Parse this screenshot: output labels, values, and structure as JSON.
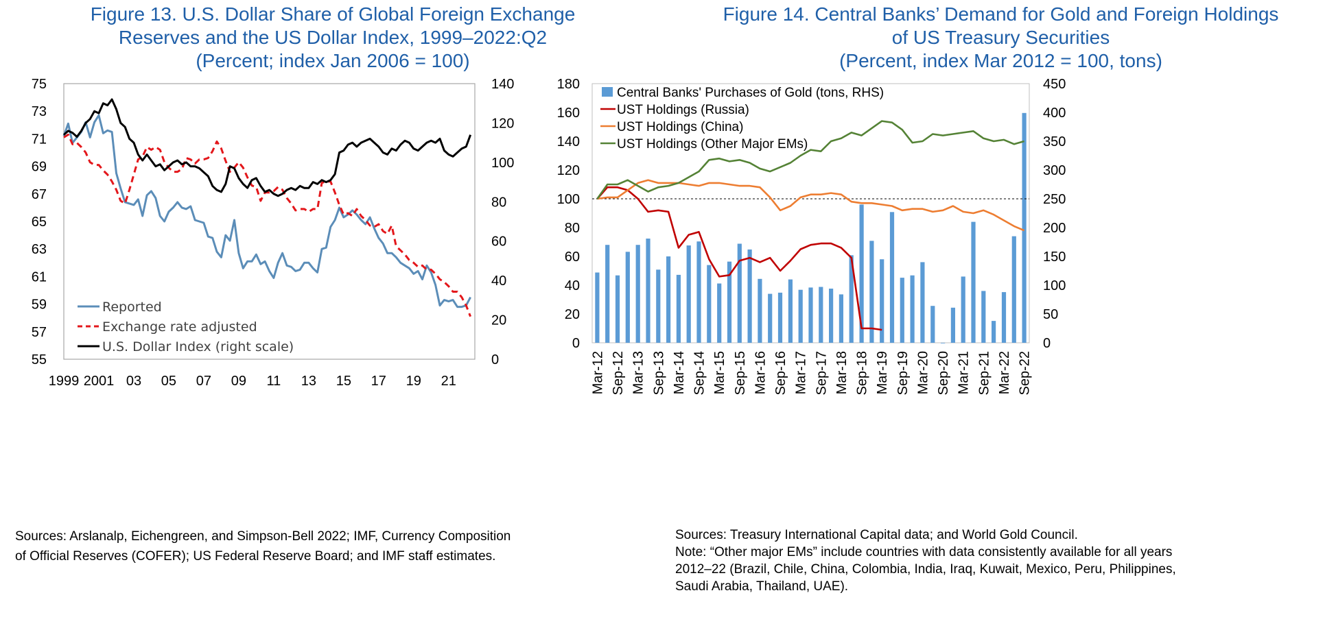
{
  "left": {
    "title_lines": [
      "Figure 13. U.S. Dollar Share of Global Foreign Exchange",
      "Reserves and the US Dollar Index, 1999–2022:Q2",
      "(Percent; index Jan 2006 = 100)"
    ],
    "source_lines": [
      "Sources: Arslanalp, Eichengreen, and Simpson-Bell 2022; IMF, Currency Composition",
      "of Official Reserves (COFER); US Federal Reserve Board; and IMF staff estimates."
    ]
  },
  "right": {
    "title_lines": [
      "Figure 14. Central Banks’ Demand for Gold and Foreign Holdings",
      "of US Treasury Securities",
      "(Percent, index Mar 2012 = 100, tons)"
    ],
    "source_lines": [
      "Sources: Treasury International Capital data; and World Gold Council.",
      "Note: “Other major EMs” include countries with data consistently available for all years",
      "2012–22 (Brazil, Chile, China, Colombia, India, Iraq, Kuwait, Mexico, Peru, Philippines,",
      "Saudi Arabia, Thailand, UAE)."
    ]
  },
  "chart_data": [
    {
      "type": "line",
      "x_tick_labels": [
        "1999",
        "2001",
        "03",
        "05",
        "07",
        "09",
        "11",
        "13",
        "15",
        "17",
        "19",
        "21"
      ],
      "x_ticks": [
        1999.0,
        2001.0,
        2003.0,
        2005.0,
        2007.0,
        2009.0,
        2011.0,
        2013.0,
        2015.0,
        2017.0,
        2019.0,
        2021.0
      ],
      "x_range": [
        1999.0,
        2022.5
      ],
      "ylim_left": [
        55,
        75
      ],
      "yticks_left": [
        55,
        57,
        59,
        61,
        63,
        65,
        67,
        69,
        71,
        73,
        75
      ],
      "ylim_right": [
        0,
        140
      ],
      "yticks_right": [
        0,
        20,
        40,
        60,
        80,
        100,
        120,
        140
      ],
      "legend_position": "bottom-left",
      "grid": false,
      "colors": {
        "reported": "#5b8db8",
        "adjusted": "#e3171b",
        "dxy": "#000000"
      },
      "series": [
        {
          "name": "Reported",
          "axis": "left",
          "style": "solid",
          "x": [
            1999.0,
            1999.25,
            1999.5,
            1999.75,
            2000.0,
            2000.25,
            2000.5,
            2000.75,
            2001.0,
            2001.25,
            2001.5,
            2001.75,
            2002.0,
            2002.25,
            2002.5,
            2002.75,
            2003.0,
            2003.25,
            2003.5,
            2003.75,
            2004.0,
            2004.25,
            2004.5,
            2004.75,
            2005.0,
            2005.25,
            2005.5,
            2005.75,
            2006.0,
            2006.25,
            2006.5,
            2006.75,
            2007.0,
            2007.25,
            2007.5,
            2007.75,
            2008.0,
            2008.25,
            2008.5,
            2008.75,
            2009.0,
            2009.25,
            2009.5,
            2009.75,
            2010.0,
            2010.25,
            2010.5,
            2010.75,
            2011.0,
            2011.25,
            2011.5,
            2011.75,
            2012.0,
            2012.25,
            2012.5,
            2012.75,
            2013.0,
            2013.25,
            2013.5,
            2013.75,
            2014.0,
            2014.25,
            2014.5,
            2014.75,
            2015.0,
            2015.25,
            2015.5,
            2015.75,
            2016.0,
            2016.25,
            2016.5,
            2016.75,
            2017.0,
            2017.25,
            2017.5,
            2017.75,
            2018.0,
            2018.25,
            2018.5,
            2018.75,
            2019.0,
            2019.25,
            2019.5,
            2019.75,
            2020.0,
            2020.25,
            2020.5,
            2020.75,
            2021.0,
            2021.25,
            2021.5,
            2021.75,
            2022.0,
            2022.25
          ],
          "values": [
            71.2,
            72.1,
            70.7,
            71.1,
            71.5,
            72.2,
            71.1,
            72.2,
            72.7,
            71.4,
            71.6,
            71.5,
            68.5,
            67.4,
            66.4,
            66.3,
            66.2,
            66.6,
            65.4,
            66.9,
            67.2,
            66.7,
            65.4,
            65.0,
            65.7,
            66.0,
            66.4,
            66.0,
            65.9,
            66.1,
            65.1,
            65.0,
            64.9,
            63.9,
            63.8,
            62.8,
            62.4,
            64.0,
            63.6,
            65.1,
            62.7,
            61.6,
            62.1,
            62.1,
            62.6,
            61.9,
            62.1,
            61.4,
            60.9,
            62.0,
            62.7,
            61.8,
            61.7,
            61.4,
            61.5,
            62.0,
            62.0,
            61.6,
            61.3,
            63.0,
            63.1,
            64.6,
            65.1,
            66.0,
            65.3,
            65.5,
            65.8,
            65.5,
            65.1,
            64.8,
            65.3,
            64.5,
            63.8,
            63.4,
            62.7,
            62.7,
            62.4,
            62.0,
            61.8,
            61.6,
            61.2,
            61.4,
            60.8,
            61.8,
            61.3,
            60.4,
            58.9,
            59.3,
            59.2,
            59.3,
            58.8,
            58.8,
            58.9,
            59.5
          ]
        },
        {
          "name": "Exchange rate adjusted",
          "axis": "left",
          "style": "dashed",
          "x": [
            1999.0,
            1999.25,
            1999.5,
            1999.75,
            2000.0,
            2000.25,
            2000.5,
            2000.75,
            2001.0,
            2001.25,
            2001.5,
            2001.75,
            2002.0,
            2002.25,
            2002.5,
            2002.75,
            2003.0,
            2003.25,
            2003.5,
            2003.75,
            2004.0,
            2004.25,
            2004.5,
            2004.75,
            2005.0,
            2005.25,
            2005.5,
            2005.75,
            2006.0,
            2006.25,
            2006.5,
            2006.75,
            2007.0,
            2007.25,
            2007.5,
            2007.75,
            2008.0,
            2008.25,
            2008.5,
            2008.75,
            2009.0,
            2009.25,
            2009.5,
            2009.75,
            2010.0,
            2010.25,
            2010.5,
            2010.75,
            2011.0,
            2011.25,
            2011.5,
            2011.75,
            2012.0,
            2012.25,
            2012.5,
            2012.75,
            2013.0,
            2013.25,
            2013.5,
            2013.75,
            2014.0,
            2014.25,
            2014.5,
            2014.75,
            2015.0,
            2015.25,
            2015.5,
            2015.75,
            2016.0,
            2016.25,
            2016.5,
            2016.75,
            2017.0,
            2017.25,
            2017.5,
            2017.75,
            2018.0,
            2018.25,
            2018.5,
            2018.75,
            2019.0,
            2019.25,
            2019.5,
            2019.75,
            2020.0,
            2020.25,
            2020.5,
            2020.75,
            2021.0,
            2021.25,
            2021.5,
            2021.75,
            2022.0,
            2022.25
          ],
          "values": [
            71.1,
            71.3,
            70.6,
            70.7,
            70.4,
            70.0,
            69.3,
            69.1,
            69.1,
            68.7,
            68.4,
            67.9,
            67.3,
            66.5,
            66.3,
            67.3,
            68.4,
            69.5,
            69.7,
            70.4,
            70.2,
            70.4,
            70.2,
            69.3,
            68.9,
            68.6,
            68.6,
            68.8,
            69.6,
            69.5,
            69.2,
            69.5,
            69.5,
            69.6,
            70.1,
            70.8,
            70.3,
            69.4,
            68.6,
            68.9,
            69.3,
            68.9,
            68.2,
            67.6,
            67.5,
            66.5,
            67.1,
            67.1,
            67.2,
            67.5,
            67.3,
            66.7,
            66.3,
            65.8,
            65.9,
            65.9,
            65.7,
            65.9,
            65.9,
            67.8,
            67.9,
            67.9,
            67.1,
            66.2,
            65.5,
            65.6,
            65.4,
            65.9,
            65.4,
            65.1,
            64.7,
            64.6,
            64.8,
            64.3,
            64.1,
            64.7,
            63.2,
            62.9,
            62.6,
            62.2,
            62.0,
            61.7,
            61.8,
            61.5,
            61.5,
            61.2,
            60.8,
            60.6,
            60.3,
            59.9,
            59.9,
            59.5,
            58.9,
            58.1
          ]
        },
        {
          "name": "U.S. Dollar Index (right scale)",
          "axis": "right",
          "style": "solid",
          "x": [
            1999.0,
            1999.25,
            1999.5,
            1999.75,
            2000.0,
            2000.25,
            2000.5,
            2000.75,
            2001.0,
            2001.25,
            2001.5,
            2001.75,
            2002.0,
            2002.25,
            2002.5,
            2002.75,
            2003.0,
            2003.25,
            2003.5,
            2003.75,
            2004.0,
            2004.25,
            2004.5,
            2004.75,
            2005.0,
            2005.25,
            2005.5,
            2005.75,
            2006.0,
            2006.25,
            2006.5,
            2006.75,
            2007.0,
            2007.25,
            2007.5,
            2007.75,
            2008.0,
            2008.25,
            2008.5,
            2008.75,
            2009.0,
            2009.25,
            2009.5,
            2009.75,
            2010.0,
            2010.25,
            2010.5,
            2010.75,
            2011.0,
            2011.25,
            2011.5,
            2011.75,
            2012.0,
            2012.25,
            2012.5,
            2012.75,
            2013.0,
            2013.25,
            2013.5,
            2013.75,
            2014.0,
            2014.25,
            2014.5,
            2014.75,
            2015.0,
            2015.25,
            2015.5,
            2015.75,
            2016.0,
            2016.25,
            2016.5,
            2016.75,
            2017.0,
            2017.25,
            2017.5,
            2017.75,
            2018.0,
            2018.25,
            2018.5,
            2018.75,
            2019.0,
            2019.25,
            2019.5,
            2019.75,
            2020.0,
            2020.25,
            2020.5,
            2020.75,
            2021.0,
            2021.25,
            2021.5,
            2021.75,
            2022.0,
            2022.25
          ],
          "values": [
            114,
            116,
            115,
            113,
            116,
            120,
            122,
            126,
            125,
            130,
            129,
            132,
            127,
            120,
            118,
            112,
            110,
            104,
            101,
            104,
            101,
            98,
            99,
            96,
            98,
            100,
            101,
            99,
            100,
            98,
            98,
            97,
            95,
            93,
            88,
            86,
            85,
            89,
            98,
            97,
            92,
            89,
            87,
            91,
            92,
            88,
            85,
            86,
            84,
            83,
            84,
            86,
            87,
            86,
            88,
            87,
            87,
            90,
            89,
            91,
            90,
            91,
            94,
            105,
            106,
            109,
            110,
            108,
            110,
            111,
            112,
            110,
            108,
            105,
            104,
            107,
            106,
            109,
            111,
            110,
            107,
            106,
            108,
            110,
            111,
            110,
            112,
            106,
            104,
            103,
            105,
            107,
            108,
            114
          ]
        }
      ]
    },
    {
      "type": "bar",
      "x_tick_labels": [
        "Mar-12",
        "Sep-12",
        "Mar-13",
        "Sep-13",
        "Mar-14",
        "Sep-14",
        "Mar-15",
        "Sep-15",
        "Mar-16",
        "Sep-16",
        "Mar-17",
        "Sep-17",
        "Mar-18",
        "Sep-18",
        "Mar-19",
        "Sep-19",
        "Mar-20",
        "Sep-20",
        "Mar-21",
        "Sep-21",
        "Mar-22",
        "Sep-22"
      ],
      "quarters": [
        "Mar-12",
        "Jun-12",
        "Sep-12",
        "Dec-12",
        "Mar-13",
        "Jun-13",
        "Sep-13",
        "Dec-13",
        "Mar-14",
        "Jun-14",
        "Sep-14",
        "Dec-14",
        "Mar-15",
        "Jun-15",
        "Sep-15",
        "Dec-15",
        "Mar-16",
        "Jun-16",
        "Sep-16",
        "Dec-16",
        "Mar-17",
        "Jun-17",
        "Sep-17",
        "Dec-17",
        "Mar-18",
        "Jun-18",
        "Sep-18",
        "Dec-18",
        "Mar-19",
        "Jun-19",
        "Sep-19",
        "Dec-19",
        "Mar-20",
        "Jun-20",
        "Sep-20",
        "Dec-20",
        "Mar-21",
        "Jun-21",
        "Sep-21",
        "Dec-21",
        "Mar-22",
        "Jun-22",
        "Sep-22"
      ],
      "ylim_left": [
        0,
        180
      ],
      "yticks_left": [
        0,
        20,
        40,
        60,
        80,
        100,
        120,
        140,
        160,
        180
      ],
      "ylim_right": [
        0,
        450
      ],
      "yticks_right": [
        0,
        50,
        100,
        150,
        200,
        250,
        300,
        350,
        400,
        450
      ],
      "reference_line": 100,
      "legend_position": "top-left",
      "grid": false,
      "colors": {
        "gold": "#5b9bd5",
        "russia": "#c00000",
        "china": "#ed7d31",
        "other": "#548235"
      },
      "series": [
        {
          "name": "Central Banks' Purchases of Gold (tons, RHS)",
          "type": "bar",
          "axis": "right",
          "values": [
            122,
            170,
            117,
            158,
            170,
            181,
            127,
            150,
            118,
            169,
            176,
            135,
            103,
            141,
            172,
            162,
            111,
            85,
            87,
            110,
            92,
            96,
            97,
            94,
            84,
            152,
            240,
            177,
            145,
            227,
            113,
            117,
            140,
            64,
            0,
            61,
            115,
            210,
            90,
            38,
            88,
            185,
            399
          ]
        },
        {
          "name": "UST Holdings (Russia)",
          "type": "line",
          "axis": "left",
          "values": [
            100,
            108,
            108,
            106,
            100,
            91,
            92,
            91,
            66,
            75,
            77,
            58,
            46,
            47,
            57,
            59,
            56,
            59,
            50,
            57,
            65,
            68,
            69,
            69,
            66,
            59,
            10,
            10,
            9
          ]
        },
        {
          "name": "UST Holdings (China)",
          "type": "line",
          "axis": "left",
          "values": [
            100,
            101,
            101,
            106,
            111,
            113,
            111,
            111,
            111,
            110,
            109,
            111,
            111,
            110,
            109,
            109,
            108,
            101,
            92,
            95,
            101,
            103,
            103,
            104,
            103,
            98,
            97,
            97,
            96,
            95,
            92,
            93,
            93,
            91,
            92,
            95,
            91,
            90,
            92,
            89,
            85,
            81,
            78
          ]
        },
        {
          "name": "UST Holdings (Other Major EMs)",
          "type": "line",
          "axis": "left",
          "values": [
            100,
            110,
            110,
            113,
            109,
            105,
            108,
            109,
            111,
            115,
            119,
            127,
            128,
            126,
            127,
            125,
            121,
            119,
            122,
            125,
            130,
            134,
            133,
            140,
            142,
            146,
            144,
            149,
            154,
            153,
            148,
            139,
            140,
            145,
            144,
            145,
            146,
            147,
            142,
            140,
            141,
            138,
            140
          ]
        }
      ]
    }
  ]
}
